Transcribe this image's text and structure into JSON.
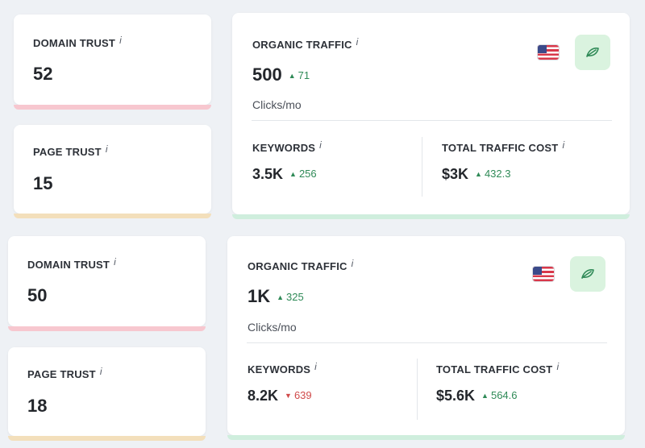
{
  "groups": [
    {
      "domain_trust": {
        "label": "DOMAIN TRUST",
        "value": "52"
      },
      "page_trust": {
        "label": "PAGE TRUST",
        "value": "15"
      },
      "traffic": {
        "label": "ORGANIC TRAFFIC",
        "value": "500",
        "delta": "71",
        "delta_direction": "up",
        "unit": "Clicks/mo",
        "keywords": {
          "label": "KEYWORDS",
          "value": "3.5K",
          "delta": "256",
          "delta_direction": "up"
        },
        "cost": {
          "label": "TOTAL TRAFFIC COST",
          "value": "$3K",
          "delta": "432.3",
          "delta_direction": "up"
        }
      }
    },
    {
      "domain_trust": {
        "label": "DOMAIN TRUST",
        "value": "50"
      },
      "page_trust": {
        "label": "PAGE TRUST",
        "value": "18"
      },
      "traffic": {
        "label": "ORGANIC TRAFFIC",
        "value": "1K",
        "delta": "325",
        "delta_direction": "up",
        "unit": "Clicks/mo",
        "keywords": {
          "label": "KEYWORDS",
          "value": "8.2K",
          "delta": "639",
          "delta_direction": "down"
        },
        "cost": {
          "label": "TOTAL TRAFFIC COST",
          "value": "$5.6K",
          "delta": "564.6",
          "delta_direction": "up"
        }
      }
    }
  ],
  "info_glyph": "i",
  "icons": {
    "flag": "us-flag-icon",
    "button": "leaf-icon"
  },
  "colors": {
    "domain_trust_bar": "#f7c7cf",
    "page_trust_bar": "#f3dfbb",
    "traffic_bar": "#cfeedd",
    "up": "#2f8a57",
    "down": "#d04a4a",
    "leaf_bg": "#daf3df"
  }
}
